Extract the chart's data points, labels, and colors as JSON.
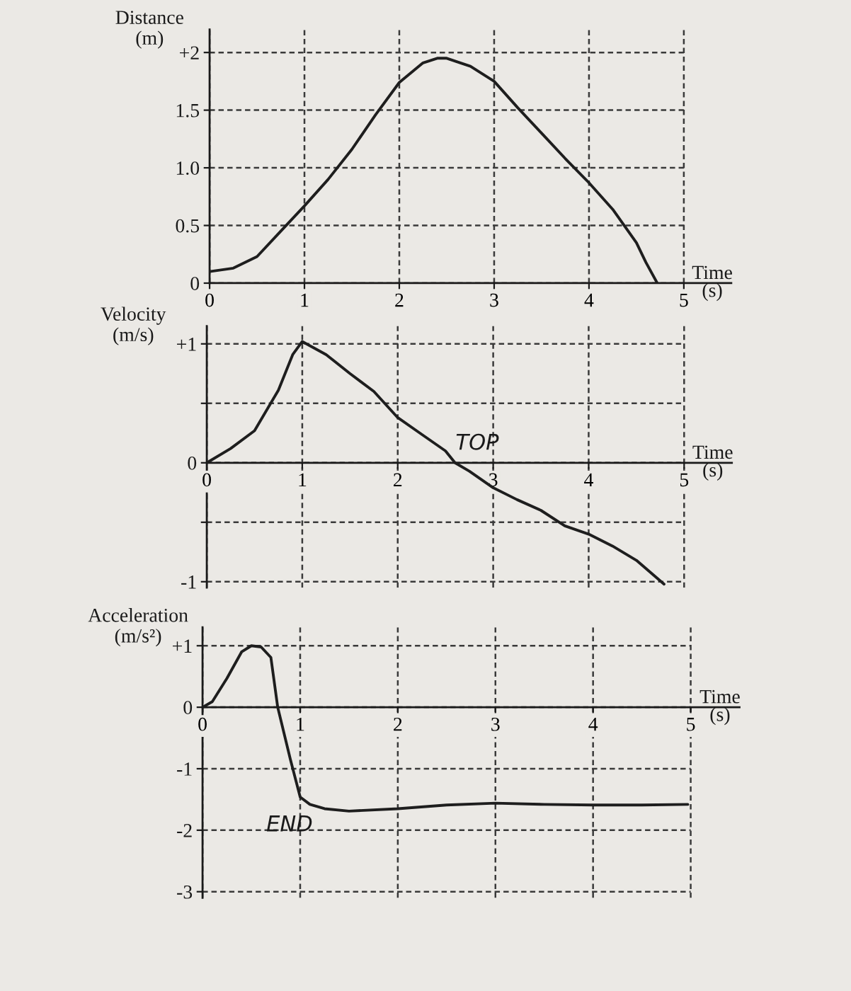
{
  "chart_data": [
    {
      "type": "line",
      "ylabel": "Distance\n(m)",
      "xlabel": "Time\n(s)",
      "x": [
        0,
        0.25,
        0.5,
        0.75,
        1,
        1.25,
        1.5,
        1.75,
        2,
        2.25,
        2.4,
        2.5,
        2.75,
        3,
        3.25,
        3.5,
        3.75,
        4,
        4.25,
        4.5,
        4.6,
        4.72
      ],
      "series": [
        {
          "color": "#1e1e1e",
          "values": [
            0.1,
            0.13,
            0.23,
            0.45,
            0.67,
            0.9,
            1.16,
            1.46,
            1.74,
            1.91,
            1.95,
            1.95,
            1.88,
            1.75,
            1.52,
            1.3,
            1.08,
            0.87,
            0.64,
            0.35,
            0.18,
            0
          ]
        }
      ],
      "xlim": [
        0,
        5.5
      ],
      "ylim": [
        0,
        2.2
      ],
      "xticks": [
        0,
        1,
        2,
        3,
        4,
        5
      ],
      "yticks": [
        0,
        0.5,
        {
          "value": 1,
          "label": "1.0"
        },
        1.5,
        {
          "value": 2,
          "label": "+2"
        }
      ],
      "grid": true
    },
    {
      "type": "line",
      "ylabel": "Velocity\n(m/s)",
      "xlabel": "Time\n(s)",
      "x": [
        0,
        0.25,
        0.5,
        0.75,
        0.9,
        1,
        1.25,
        1.5,
        1.75,
        2,
        2.25,
        2.5,
        2.6,
        2.75,
        3,
        3.25,
        3.5,
        3.75,
        4,
        4.25,
        4.5,
        4.79
      ],
      "series": [
        {
          "color": "#1e1e1e",
          "values": [
            0,
            0.12,
            0.27,
            0.61,
            0.91,
            1.02,
            0.91,
            0.75,
            0.6,
            0.38,
            0.24,
            0.1,
            0,
            -0.07,
            -0.21,
            -0.31,
            -0.4,
            -0.53,
            -0.6,
            -0.7,
            -0.82,
            -1.02
          ]
        }
      ],
      "xlim": [
        0,
        5.5
      ],
      "ylim": [
        -1.05,
        1.15
      ],
      "xticks": [
        0,
        1,
        2,
        3,
        4,
        5
      ],
      "yticks": [
        -1,
        {
          "value": -0.5,
          "label": null
        },
        0,
        {
          "value": 0.5,
          "label": null
        },
        {
          "value": 1,
          "label": "+1"
        }
      ],
      "grid": true,
      "annotations": [
        "TOP"
      ]
    },
    {
      "type": "line",
      "ylabel": "Acceleration\n(m/s²)",
      "xlabel": "Time\n(s)",
      "x": [
        0,
        0.1,
        0.25,
        0.4,
        0.5,
        0.6,
        0.7,
        0.77,
        0.9,
        1,
        1.1,
        1.25,
        1.5,
        2,
        2.5,
        3,
        3.5,
        4,
        4.5,
        4.97
      ],
      "series": [
        {
          "color": "#1e1e1e",
          "values": [
            0,
            0.09,
            0.47,
            0.9,
            1.0,
            0.98,
            0.81,
            0,
            -0.85,
            -1.46,
            -1.58,
            -1.65,
            -1.69,
            -1.65,
            -1.59,
            -1.56,
            -1.58,
            -1.59,
            -1.59,
            -1.58
          ]
        }
      ],
      "xlim": [
        0,
        5.5
      ],
      "ylim": [
        -3.1,
        1.3
      ],
      "xticks": [
        0,
        1,
        2,
        3,
        4,
        5
      ],
      "yticks": [
        -3,
        -2,
        -1,
        0,
        {
          "value": 1,
          "label": "+1"
        }
      ],
      "grid": true,
      "annotations": [
        "END"
      ]
    }
  ]
}
